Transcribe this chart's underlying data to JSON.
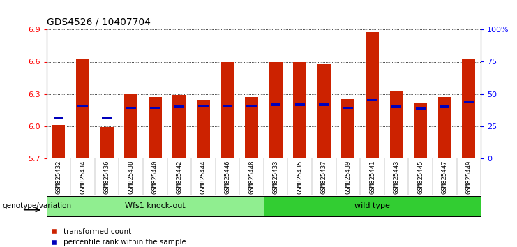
{
  "title": "GDS4526 / 10407704",
  "samples": [
    "GSM825432",
    "GSM825434",
    "GSM825436",
    "GSM825438",
    "GSM825440",
    "GSM825442",
    "GSM825444",
    "GSM825446",
    "GSM825448",
    "GSM825433",
    "GSM825435",
    "GSM825437",
    "GSM825439",
    "GSM825441",
    "GSM825443",
    "GSM825445",
    "GSM825447",
    "GSM825449"
  ],
  "red_values": [
    6.01,
    6.62,
    5.99,
    6.3,
    6.27,
    6.29,
    6.24,
    6.6,
    6.27,
    6.6,
    6.6,
    6.58,
    6.25,
    6.88,
    6.32,
    6.21,
    6.27,
    6.63
  ],
  "blue_values": [
    6.08,
    6.19,
    6.08,
    6.17,
    6.17,
    6.18,
    6.19,
    6.19,
    6.19,
    6.2,
    6.2,
    6.2,
    6.17,
    6.24,
    6.18,
    6.16,
    6.18,
    6.22
  ],
  "ymin": 5.7,
  "ymax": 6.9,
  "yticks": [
    5.7,
    6.0,
    6.3,
    6.6,
    6.9
  ],
  "right_yticks": [
    0,
    25,
    50,
    75,
    100
  ],
  "right_ylabels": [
    "0",
    "25",
    "50",
    "75",
    "100%"
  ],
  "groups": [
    {
      "label": "Wfs1 knock-out",
      "start": 0,
      "end": 9,
      "color": "#90EE90"
    },
    {
      "label": "wild type",
      "start": 9,
      "end": 18,
      "color": "#32CD32"
    }
  ],
  "bar_color": "#CC2200",
  "blue_color": "#0000BB",
  "tick_bg_color": "#CCCCCC",
  "plot_bg": "#FFFFFF",
  "legend_red": "transformed count",
  "legend_blue": "percentile rank within the sample",
  "genotype_label": "genotype/variation",
  "title_fontsize": 10,
  "bar_width": 0.55
}
